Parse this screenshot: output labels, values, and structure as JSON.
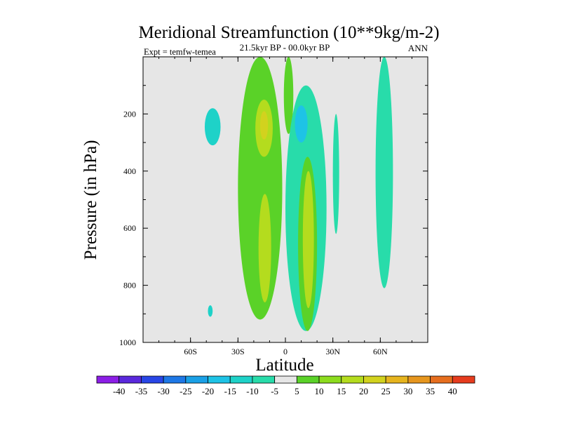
{
  "chart_data": {
    "type": "contour",
    "title": "Meridional Streamfunction (10**9kg/m-2)",
    "subtitle": "21.5kyr BP - 00.0kyr BP",
    "left_label": "Expt = temfw-temea",
    "right_label": "ANN",
    "xlabel": "Latitude",
    "ylabel": "Pressure (in hPa)",
    "xlim": [
      -90,
      90
    ],
    "ylim": [
      1000,
      0
    ],
    "x_ticks": [
      {
        "value": -60,
        "label": "60S"
      },
      {
        "value": -30,
        "label": "30S"
      },
      {
        "value": 0,
        "label": "0"
      },
      {
        "value": 30,
        "label": "30N"
      },
      {
        "value": 60,
        "label": "60N"
      }
    ],
    "y_ticks": [
      {
        "value": 200,
        "label": "200"
      },
      {
        "value": 400,
        "label": "400"
      },
      {
        "value": 600,
        "label": "600"
      },
      {
        "value": 800,
        "label": "800"
      },
      {
        "value": 1000,
        "label": "1000"
      }
    ],
    "colorbar": {
      "labels": [
        "-40",
        "-35",
        "-30",
        "-25",
        "-20",
        "-15",
        "-10",
        "-5",
        "5",
        "10",
        "15",
        "20",
        "25",
        "30",
        "35",
        "40"
      ],
      "colors": [
        "#8c1ee6",
        "#5a28dc",
        "#2846e6",
        "#1e78e6",
        "#1aa0e6",
        "#1ec3e6",
        "#1ed2c8",
        "#28dcaa",
        "#e6e6e6",
        "#5ad228",
        "#8cdc1e",
        "#b4dc1e",
        "#d2d21e",
        "#e6b41e",
        "#e6961e",
        "#e66e1e",
        "#e63c1e"
      ]
    },
    "regions": [
      {
        "name": "cyan-patch-50S",
        "level": -10,
        "lat": [
          -51,
          -41
        ],
        "p": [
          180,
          310
        ]
      },
      {
        "name": "cyan-dot-47S",
        "level": -10,
        "lat": [
          -49,
          -46
        ],
        "p": [
          870,
          910
        ]
      },
      {
        "name": "green-cell-sh",
        "level": 5,
        "lat": [
          -30,
          -2
        ],
        "p": [
          0,
          920
        ]
      },
      {
        "name": "yellow-core-sh-upper",
        "level": 15,
        "lat": [
          -19,
          -8
        ],
        "p": [
          150,
          350
        ]
      },
      {
        "name": "orange-core-sh",
        "level": 20,
        "lat": [
          -16,
          -11
        ],
        "p": [
          190,
          290
        ]
      },
      {
        "name": "yellow-core-sh-lower",
        "level": 15,
        "lat": [
          -17,
          -9
        ],
        "p": [
          480,
          860
        ]
      },
      {
        "name": "green-strip-nh-upper",
        "level": 5,
        "lat": [
          -1,
          5
        ],
        "p": [
          0,
          270
        ]
      },
      {
        "name": "cyan-plume-eq",
        "level": -5,
        "lat": [
          0,
          26
        ],
        "p": [
          100,
          960
        ]
      },
      {
        "name": "blue-core-eq",
        "level": -15,
        "lat": [
          6,
          14
        ],
        "p": [
          170,
          300
        ]
      },
      {
        "name": "green-cell-nh",
        "level": 5,
        "lat": [
          8,
          20
        ],
        "p": [
          350,
          960
        ]
      },
      {
        "name": "yellow-core-nh",
        "level": 15,
        "lat": [
          11,
          18
        ],
        "p": [
          400,
          880
        ]
      },
      {
        "name": "cyan-streak-35N",
        "level": -5,
        "lat": [
          30,
          34
        ],
        "p": [
          200,
          620
        ]
      },
      {
        "name": "cyan-band-60N",
        "level": -5,
        "lat": [
          57,
          68
        ],
        "p": [
          0,
          810
        ]
      }
    ]
  }
}
